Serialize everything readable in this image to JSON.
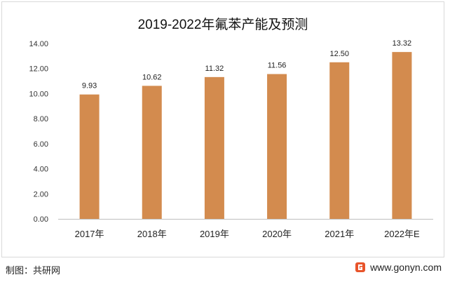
{
  "chart_data": {
    "type": "bar",
    "title": "2019-2022年氟苯产能及预测",
    "categories": [
      "2017年",
      "2018年",
      "2019年",
      "2020年",
      "2021年",
      "2022年E"
    ],
    "values": [
      9.93,
      10.62,
      11.32,
      11.56,
      12.5,
      13.32
    ],
    "value_labels": [
      "9.93",
      "10.62",
      "11.32",
      "11.56",
      "12.50",
      "13.32"
    ],
    "yticks": [
      "0.00",
      "2.00",
      "4.00",
      "6.00",
      "8.00",
      "10.00",
      "12.00",
      "14.00"
    ],
    "ylim": [
      0,
      14
    ],
    "grid": false,
    "bar_color": "#D38B4E"
  },
  "footer": {
    "source": "制图：共研网",
    "website": "www.gonyn.com",
    "logo_icon": "gonyn-logo-icon"
  }
}
